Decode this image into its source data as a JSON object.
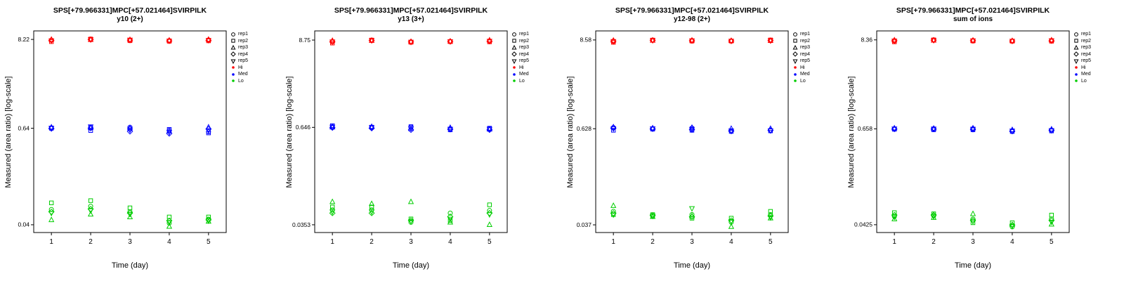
{
  "page": {
    "background": "#FFFFFF"
  },
  "legend": {
    "reps": [
      {
        "label": "rep1",
        "marker": "circle"
      },
      {
        "label": "rep2",
        "marker": "square"
      },
      {
        "label": "rep3",
        "marker": "triangle-up"
      },
      {
        "label": "rep4",
        "marker": "diamond"
      },
      {
        "label": "rep5",
        "marker": "triangle-down"
      }
    ],
    "levels": [
      {
        "label": "Hi",
        "color": "#FF0000"
      },
      {
        "label": "Med",
        "color": "#0000FF"
      },
      {
        "label": "Lo",
        "color": "#00CD00"
      }
    ]
  },
  "chart_data": [
    {
      "type": "scatter",
      "title": "SPS[+79.966331]MPC[+57.021464]SVIRPILK",
      "subtitle": "y10 (2+)",
      "xlabel": "Time (day)",
      "ylabel": "Measured (area ratio) [log-scale]",
      "x_ticks": [
        "1",
        "2",
        "3",
        "4",
        "5"
      ],
      "x": [
        1,
        2,
        3,
        4,
        5
      ],
      "y_scale": "log",
      "ylim": [
        0.032,
        10.5
      ],
      "y_ticks": [
        {
          "value": 8.22,
          "label": "8.22"
        },
        {
          "value": 0.64,
          "label": "0.64"
        },
        {
          "value": 0.04,
          "label": "0.04"
        }
      ],
      "series": [
        {
          "name": "Hi",
          "color": "#FF0000",
          "values_by_day": [
            [
              8.05,
              7.72,
              8.2,
              8.0,
              7.95
            ],
            [
              8.2,
              8.32,
              8.15,
              8.2,
              8.22
            ],
            [
              8.1,
              7.93,
              8.15,
              8.05,
              8.1
            ],
            [
              7.95,
              7.8,
              8.02,
              7.9,
              7.88
            ],
            [
              8.1,
              7.9,
              8.2,
              8.02,
              8.05
            ]
          ]
        },
        {
          "name": "Med",
          "color": "#0000FF",
          "values_by_day": [
            [
              0.65,
              0.64,
              0.66,
              0.635,
              0.645
            ],
            [
              0.66,
              0.6,
              0.65,
              0.64,
              0.67
            ],
            [
              0.66,
              0.63,
              0.645,
              0.585,
              0.61
            ],
            [
              0.6,
              0.62,
              0.59,
              0.55,
              0.57
            ],
            [
              0.58,
              0.56,
              0.66,
              0.625,
              0.6
            ]
          ]
        },
        {
          "name": "Lo",
          "color": "#00CD00",
          "values_by_day": [
            [
              0.062,
              0.075,
              0.046,
              0.058,
              0.056
            ],
            [
              0.068,
              0.08,
              0.054,
              0.063,
              0.06
            ],
            [
              0.058,
              0.065,
              0.05,
              0.056,
              0.054
            ],
            [
              0.042,
              0.05,
              0.038,
              0.045,
              0.043
            ],
            [
              0.047,
              0.05,
              0.044,
              0.046,
              0.045
            ]
          ]
        }
      ]
    },
    {
      "type": "scatter",
      "title": "SPS[+79.966331]MPC[+57.021464]SVIRPILK",
      "subtitle": "y13 (3+)",
      "xlabel": "Time (day)",
      "ylabel": "Measured (area ratio) [log-scale]",
      "x_ticks": [
        "1",
        "2",
        "3",
        "4",
        "5"
      ],
      "x": [
        1,
        2,
        3,
        4,
        5
      ],
      "y_scale": "log",
      "ylim": [
        0.028,
        11.5
      ],
      "y_ticks": [
        {
          "value": 8.75,
          "label": "8.75"
        },
        {
          "value": 0.646,
          "label": "0.646"
        },
        {
          "value": 0.0353,
          "label": "0.0353"
        }
      ],
      "series": [
        {
          "name": "Hi",
          "color": "#FF0000",
          "values_by_day": [
            [
              8.3,
              8.0,
              8.6,
              8.4,
              8.35
            ],
            [
              8.7,
              8.75,
              8.6,
              8.65,
              8.68
            ],
            [
              8.3,
              8.2,
              8.35,
              8.28,
              8.25
            ],
            [
              8.4,
              8.35,
              8.45,
              8.4,
              8.38
            ],
            [
              8.5,
              8.3,
              8.72,
              8.45,
              8.5
            ]
          ]
        },
        {
          "name": "Med",
          "color": "#0000FF",
          "values_by_day": [
            [
              0.66,
              0.68,
              0.65,
              0.64,
              0.655
            ],
            [
              0.64,
              0.65,
              0.66,
              0.63,
              0.645
            ],
            [
              0.65,
              0.66,
              0.62,
              0.6,
              0.63
            ],
            [
              0.62,
              0.6,
              0.64,
              0.61,
              0.615
            ],
            [
              0.62,
              0.63,
              0.61,
              0.6,
              0.615
            ]
          ]
        },
        {
          "name": "Lo",
          "color": "#00CD00",
          "values_by_day": [
            [
              0.055,
              0.06,
              0.07,
              0.05,
              0.052
            ],
            [
              0.055,
              0.06,
              0.066,
              0.05,
              0.052
            ],
            [
              0.038,
              0.042,
              0.07,
              0.04,
              0.039
            ],
            [
              0.05,
              0.04,
              0.038,
              0.045,
              0.042
            ],
            [
              0.054,
              0.064,
              0.0353,
              0.05,
              0.048
            ]
          ]
        }
      ]
    },
    {
      "type": "scatter",
      "title": "SPS[+79.966331]MPC[+57.021464]SVIRPILK",
      "subtitle": "y12-98 (2+)",
      "xlabel": "Time (day)",
      "ylabel": "Measured (area ratio) [log-scale]",
      "x_ticks": [
        "1",
        "2",
        "3",
        "4",
        "5"
      ],
      "x": [
        1,
        2,
        3,
        4,
        5
      ],
      "y_scale": "log",
      "ylim": [
        0.0295,
        11.2
      ],
      "y_ticks": [
        {
          "value": 8.58,
          "label": "8.58"
        },
        {
          "value": 0.628,
          "label": "0.628"
        },
        {
          "value": 0.037,
          "label": "0.037"
        }
      ],
      "series": [
        {
          "name": "Hi",
          "color": "#FF0000",
          "values_by_day": [
            [
              8.2,
              8.0,
              8.45,
              8.3,
              8.25
            ],
            [
              8.5,
              8.55,
              8.45,
              8.5,
              8.48
            ],
            [
              8.45,
              8.3,
              8.5,
              8.4,
              8.42
            ],
            [
              8.35,
              8.3,
              8.4,
              8.35,
              8.32
            ],
            [
              8.45,
              8.58,
              8.4,
              8.42,
              8.45
            ]
          ]
        },
        {
          "name": "Med",
          "color": "#0000FF",
          "values_by_day": [
            [
              0.65,
              0.6,
              0.66,
              0.64,
              0.63
            ],
            [
              0.63,
              0.62,
              0.64,
              0.625,
              0.63
            ],
            [
              0.64,
              0.6,
              0.65,
              0.61,
              0.62
            ],
            [
              0.59,
              0.58,
              0.63,
              0.585,
              0.592
            ],
            [
              0.6,
              0.59,
              0.63,
              0.6,
              0.595
            ]
          ]
        },
        {
          "name": "Lo",
          "color": "#00CD00",
          "values_by_day": [
            [
              0.055,
              0.05,
              0.065,
              0.052,
              0.05
            ],
            [
              0.048,
              0.05,
              0.047,
              0.049,
              0.048
            ],
            [
              0.05,
              0.045,
              0.048,
              0.047,
              0.06
            ],
            [
              0.04,
              0.045,
              0.035,
              0.042,
              0.041
            ],
            [
              0.05,
              0.055,
              0.045,
              0.048,
              0.046
            ]
          ]
        }
      ]
    },
    {
      "type": "scatter",
      "title": "SPS[+79.966331]MPC[+57.021464]SVIRPILK",
      "subtitle": "sum of ions",
      "xlabel": "Time (day)",
      "ylabel": "Measured (area ratio) [log-scale]",
      "x_ticks": [
        "1",
        "2",
        "3",
        "4",
        "5"
      ],
      "x": [
        1,
        2,
        3,
        4,
        5
      ],
      "y_scale": "log",
      "ylim": [
        0.034,
        10.8
      ],
      "y_ticks": [
        {
          "value": 8.36,
          "label": "8.36"
        },
        {
          "value": 0.658,
          "label": "0.658"
        },
        {
          "value": 0.0425,
          "label": "0.0425"
        }
      ],
      "series": [
        {
          "name": "Hi",
          "color": "#FF0000",
          "values_by_day": [
            [
              8.1,
              7.9,
              8.3,
              8.2,
              8.15
            ],
            [
              8.3,
              8.36,
              8.25,
              8.3,
              8.28
            ],
            [
              8.2,
              8.1,
              8.25,
              8.2,
              8.18
            ],
            [
              8.1,
              8.05,
              8.15,
              8.1,
              8.08
            ],
            [
              8.2,
              8.05,
              8.3,
              8.15,
              8.2
            ]
          ]
        },
        {
          "name": "Med",
          "color": "#0000FF",
          "values_by_day": [
            [
              0.66,
              0.65,
              0.67,
              0.655,
              0.66
            ],
            [
              0.66,
              0.64,
              0.665,
              0.655,
              0.658
            ],
            [
              0.66,
              0.64,
              0.67,
              0.65,
              0.655
            ],
            [
              0.62,
              0.61,
              0.64,
              0.615,
              0.62
            ],
            [
              0.63,
              0.62,
              0.65,
              0.635,
              0.63
            ]
          ]
        },
        {
          "name": "Lo",
          "color": "#00CD00",
          "values_by_day": [
            [
              0.054,
              0.06,
              0.05,
              0.056,
              0.053
            ],
            [
              0.055,
              0.058,
              0.052,
              0.056,
              0.054
            ],
            [
              0.05,
              0.045,
              0.058,
              0.048,
              0.047
            ],
            [
              0.04,
              0.045,
              0.0425,
              0.042,
              0.041
            ],
            [
              0.05,
              0.056,
              0.043,
              0.048,
              0.046
            ]
          ]
        }
      ]
    }
  ]
}
